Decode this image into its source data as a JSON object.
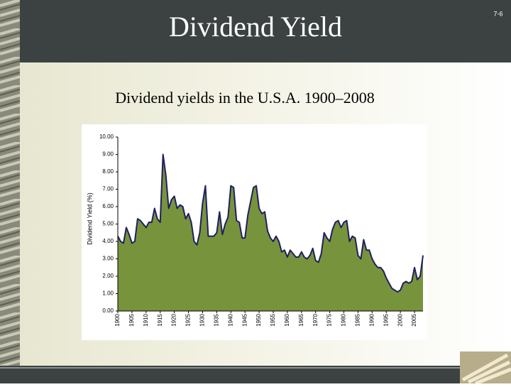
{
  "header": {
    "title": "Dividend Yield",
    "page": "7-6"
  },
  "chart_data": {
    "type": "area",
    "title": "Dividend yields in the U.S.A. 1900–2008",
    "ylabel": "Dividend Yield (%)",
    "x": [
      1900,
      1901,
      1902,
      1903,
      1904,
      1905,
      1906,
      1907,
      1908,
      1909,
      1910,
      1911,
      1912,
      1913,
      1914,
      1915,
      1916,
      1917,
      1918,
      1919,
      1920,
      1921,
      1922,
      1923,
      1924,
      1925,
      1926,
      1927,
      1928,
      1929,
      1930,
      1931,
      1932,
      1933,
      1934,
      1935,
      1936,
      1937,
      1938,
      1939,
      1940,
      1941,
      1942,
      1943,
      1944,
      1945,
      1946,
      1947,
      1948,
      1949,
      1950,
      1951,
      1952,
      1953,
      1954,
      1955,
      1956,
      1957,
      1958,
      1959,
      1960,
      1961,
      1962,
      1963,
      1964,
      1965,
      1966,
      1967,
      1968,
      1969,
      1970,
      1971,
      1972,
      1973,
      1974,
      1975,
      1976,
      1977,
      1978,
      1979,
      1980,
      1981,
      1982,
      1983,
      1984,
      1985,
      1986,
      1987,
      1988,
      1989,
      1990,
      1991,
      1992,
      1993,
      1994,
      1995,
      1996,
      1997,
      1998,
      1999,
      2000,
      2001,
      2002,
      2003,
      2004,
      2005,
      2006,
      2007,
      2008
    ],
    "series": [
      {
        "name": "Dividend Yield",
        "color": "#77933c",
        "line_color": "#1f1f5f",
        "values": [
          4.3,
          4.0,
          3.9,
          4.8,
          4.4,
          3.9,
          4.0,
          5.3,
          5.2,
          5.0,
          4.8,
          5.1,
          5.1,
          5.9,
          5.3,
          5.1,
          9.0,
          7.8,
          5.9,
          6.4,
          6.6,
          5.9,
          6.1,
          6.0,
          5.3,
          5.6,
          5.1,
          4.0,
          3.8,
          4.5,
          6.2,
          7.2,
          4.3,
          4.3,
          4.3,
          4.5,
          5.7,
          4.4,
          5.0,
          5.4,
          7.2,
          7.1,
          5.2,
          5.1,
          4.2,
          4.2,
          5.5,
          6.3,
          7.1,
          7.2,
          5.9,
          5.6,
          5.7,
          4.6,
          4.2,
          4.0,
          4.3,
          4.0,
          3.4,
          3.5,
          3.1,
          3.5,
          3.3,
          3.1,
          3.1,
          3.4,
          3.1,
          3.0,
          3.2,
          3.6,
          2.9,
          2.8,
          3.3,
          4.5,
          4.2,
          4.0,
          4.7,
          5.1,
          5.2,
          4.8,
          5.1,
          5.2,
          4.0,
          4.3,
          4.2,
          3.2,
          3.0,
          4.1,
          3.5,
          3.5,
          3.0,
          2.7,
          2.5,
          2.5,
          2.3,
          1.9,
          1.6,
          1.3,
          1.2,
          1.1,
          1.2,
          1.6,
          1.7,
          1.6,
          1.7,
          2.5,
          1.8,
          2.0,
          3.2
        ]
      }
    ],
    "xlim": [
      1900,
      2008
    ],
    "xticks": [
      1900,
      1905,
      1910,
      1915,
      1920,
      1925,
      1930,
      1935,
      1940,
      1945,
      1950,
      1955,
      1960,
      1965,
      1970,
      1975,
      1980,
      1985,
      1990,
      1995,
      2000,
      2005
    ],
    "ylim": [
      0,
      10
    ],
    "yticks": [
      {
        "value": 0,
        "label": "0.00"
      },
      {
        "value": 1,
        "label": "1.00"
      },
      {
        "value": 2,
        "label": "2.00"
      },
      {
        "value": 3,
        "label": "3.00"
      },
      {
        "value": 4,
        "label": "4.00"
      },
      {
        "value": 5,
        "label": "5.00"
      },
      {
        "value": 6,
        "label": "6.00"
      },
      {
        "value": 7,
        "label": "7.00"
      },
      {
        "value": 8,
        "label": "8.00"
      },
      {
        "value": 9,
        "label": "9.00"
      },
      {
        "value": 10,
        "label": "10.00"
      }
    ],
    "grid": false
  }
}
